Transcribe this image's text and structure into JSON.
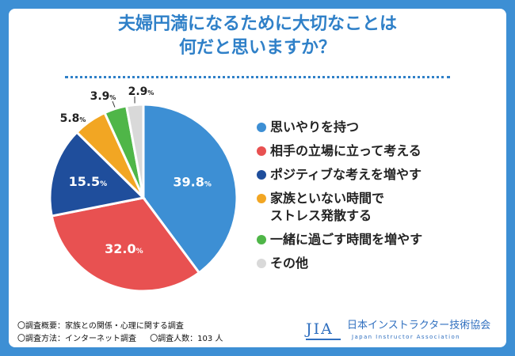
{
  "title": {
    "line1": "夫婦円満になるために大切なことは",
    "line2": "何だと思いますか？"
  },
  "chart_data": {
    "type": "pie",
    "title": "夫婦円満になるために大切なことは 何だと思いますか？",
    "unit": "%",
    "slices": [
      {
        "label": "思いやりを持つ",
        "value": 39.8,
        "color": "#3d8fd4"
      },
      {
        "label": "相手の立場に立って考える",
        "value": 32.0,
        "color": "#e85151"
      },
      {
        "label": "ポジティブな考えを増やす",
        "value": 15.5,
        "color": "#1f4e9c"
      },
      {
        "label": "家族といない時間で\nストレス発散する",
        "value": 5.8,
        "color": "#f2a623"
      },
      {
        "label": "一緒に過ごす時間を増やす",
        "value": 3.9,
        "color": "#4fb648"
      },
      {
        "label": "その他",
        "value": 2.9,
        "color": "#d9d9d9"
      }
    ],
    "value_labels": [
      "39.8",
      "32.0",
      "15.5",
      "5.8",
      "3.9",
      "2.9"
    ],
    "legend_position": "right"
  },
  "footnotes": {
    "survey_overview": "〇調査概要：家族との関係・心理に関する調査",
    "survey_method": "〇調査方法：インターネット調査",
    "respondents": "〇調査人数：103 人"
  },
  "logo": {
    "mark": "JIA",
    "org_name": "日本インストラクター技術協会",
    "org_name_en": "Japan Instructor Association"
  }
}
